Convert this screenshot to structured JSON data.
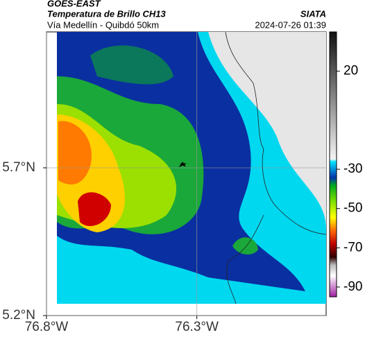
{
  "header": {
    "satellite": "GOES-EAST",
    "product": "Temperatura de Brillo CH13",
    "route": "Vía Medellín - Quibdó 50km",
    "source": "SIATA",
    "timestamp": "2024-07-26 01:39"
  },
  "map": {
    "xlim": [
      -76.8,
      -75.87
    ],
    "ylim": [
      5.2,
      6.16
    ],
    "xticks": [
      {
        "value": -76.8,
        "label": "76.8°W"
      },
      {
        "value": -76.3,
        "label": "76.3°W"
      }
    ],
    "yticks": [
      {
        "value": 5.2,
        "label": "5.2°N"
      },
      {
        "value": 5.7,
        "label": "5.7°N"
      }
    ],
    "grid": true
  },
  "colorbar": {
    "lim": [
      40,
      -95
    ],
    "ticks": [
      20,
      -30,
      -50,
      -70,
      -90
    ]
  }
}
